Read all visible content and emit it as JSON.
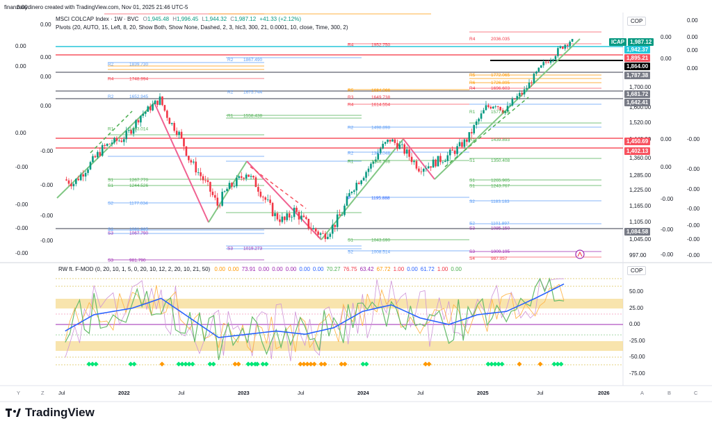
{
  "page": {
    "attribution": "finanzasydinero created with TradingView.com, Nov 01, 2025 21:46 UTC-5",
    "brand": "TradingView"
  },
  "price_pane": {
    "symbol_line": "MSCI COLCAP Index · 1W · BVC",
    "ohlc": {
      "O": "1,945.48",
      "H": "1,996.45",
      "L": "1,944.32",
      "C": "1,987.12",
      "change": "+41.33 (+2.12%)"
    },
    "indicator_line": "Pivots (20, AUTO, 15, Left, 8, 20, Show Both, Show None, Dashed, 2, 3, hlc3, 300, 21, 0.0001, 10, close, Time, 300, 2)",
    "currency_button": "COP",
    "y_axis_ticks": [
      {
        "value": 1700,
        "label": "1,700.00"
      },
      {
        "value": 1600,
        "label": "1,600.00"
      },
      {
        "value": 1520,
        "label": "1,520.00"
      },
      {
        "value": 1440,
        "label": "1,440.00"
      },
      {
        "value": 1360,
        "label": "1,360.00"
      },
      {
        "value": 1285,
        "label": "1,285.00"
      },
      {
        "value": 1225,
        "label": "1,225.00"
      },
      {
        "value": 1165,
        "label": "1,165.00"
      },
      {
        "value": 1105,
        "label": "1,105.00"
      },
      {
        "value": 1045,
        "label": "1,045.00"
      },
      {
        "value": 997,
        "label": "997.00"
      }
    ],
    "price_pills": [
      {
        "label": "ICAP",
        "value": "1,987.12",
        "color": "#089981"
      },
      {
        "value": "1,942.37",
        "color": "#26c6da"
      },
      {
        "value": "1,895.21",
        "color": "#f7525f"
      },
      {
        "value": "1,864.00",
        "color": "#000000"
      },
      {
        "value": "1,787.38",
        "color": "#787b86"
      },
      {
        "value": "1,681.72",
        "color": "#787b86"
      },
      {
        "value": "1,642.41",
        "color": "#787b86"
      },
      {
        "value": "1,450.69",
        "color": "#f7525f"
      },
      {
        "value": "1,402.13",
        "color": "#f7525f"
      },
      {
        "value": "1,084.58",
        "color": "#787b86"
      }
    ],
    "left_zero_labels": [
      "0.00",
      "0.00",
      "0.00",
      "0.00",
      "0.00",
      "0.00",
      "0.00",
      "0.00",
      "-0.00",
      "-0.00",
      "-0.00",
      "-0.00",
      "-0.00",
      "-0.00",
      "-0.00",
      "-0.00"
    ],
    "right_zero_labels_a": [
      "0.00",
      "0.00",
      "0.00",
      "0.00",
      "-0.00",
      "-0.00",
      "-0.00",
      "-0.00",
      "-0.00",
      "-0.00",
      "-0.00"
    ],
    "right_zero_labels_b": [
      "0.00",
      "0.00",
      "0.00",
      "0.00",
      "-0.00",
      "-0.00",
      "-0.00",
      "-0.00",
      "-0.00",
      "-0.00",
      "-0.00",
      "-0.00"
    ],
    "pivot_labels": [
      {
        "tag": "R4",
        "value": "2036.035"
      },
      {
        "tag": "R4",
        "value": "1952.750"
      },
      {
        "tag": "R2",
        "value": "1867.490"
      },
      {
        "tag": "R2",
        "value": "1839.730"
      },
      {
        "tag": "R4",
        "value": "1748.994"
      },
      {
        "tag": "R5",
        "value": "1772.065"
      },
      {
        "tag": "R6",
        "value": "1726.895"
      },
      {
        "tag": "R4",
        "value": "1696.603"
      },
      {
        "tag": "R5",
        "value": "1684.066"
      },
      {
        "tag": "R2",
        "value": "1652.945"
      },
      {
        "tag": "R2",
        "value": "1675.744"
      },
      {
        "tag": "R3",
        "value": "1649.738"
      },
      {
        "tag": "R4",
        "value": "1614.554"
      },
      {
        "tag": "R1",
        "value": "1558.438"
      },
      {
        "tag": "R1",
        "value": "1577.414"
      },
      {
        "tag": "R2",
        "value": "1498.898"
      },
      {
        "tag": "R1",
        "value": "1493.014"
      },
      {
        "tag": "R1",
        "value": "1439.893"
      },
      {
        "tag": "R2",
        "value": "1381.048"
      },
      {
        "tag": "R1",
        "value": "1346.798"
      },
      {
        "tag": "S1",
        "value": "1350.408"
      },
      {
        "tag": "S1",
        "value": "1267.770"
      },
      {
        "tag": "S1",
        "value": "1244.526"
      },
      {
        "tag": "S1",
        "value": "1265.905"
      },
      {
        "tag": "S1",
        "value": "1243.767"
      },
      {
        "tag": "P",
        "value": "1195.888"
      },
      {
        "tag": "S2",
        "value": "1183.183"
      },
      {
        "tag": "S2",
        "value": "1177.034"
      },
      {
        "tag": "S2",
        "value": "1101.897"
      },
      {
        "tag": "S3",
        "value": "1085.150"
      },
      {
        "tag": "S2",
        "value": "1081.985"
      },
      {
        "tag": "S3",
        "value": "1067.790"
      },
      {
        "tag": "S1",
        "value": "1043.690"
      },
      {
        "tag": "S3",
        "value": "1019.273"
      },
      {
        "tag": "S2",
        "value": "1008.514"
      },
      {
        "tag": "S3",
        "value": "1009.195"
      },
      {
        "tag": "S4",
        "value": "987.057"
      },
      {
        "tag": "S3",
        "value": "981.790"
      }
    ]
  },
  "oscillator_pane": {
    "title": "RW ft. F-MOD (0, 20, 10, 1, 5, 0, 20, 10, 12, 2, 20, 10, 21, 50)",
    "values": [
      {
        "text": "0.00",
        "color": "#ff9800"
      },
      {
        "text": "0.00",
        "color": "#ff9800"
      },
      {
        "text": "73.91",
        "color": "#9c27b0"
      },
      {
        "text": "0.00",
        "color": "#9c27b0"
      },
      {
        "text": "0.00",
        "color": "#9c27b0"
      },
      {
        "text": "0.00",
        "color": "#9c27b0"
      },
      {
        "text": "0.00",
        "color": "#2962ff"
      },
      {
        "text": "0.00",
        "color": "#2962ff"
      },
      {
        "text": "70.27",
        "color": "#4caf50"
      },
      {
        "text": "76.75",
        "color": "#f23645"
      },
      {
        "text": "63.42",
        "color": "#9c27b0"
      },
      {
        "text": "67.72",
        "color": "#ff9800"
      },
      {
        "text": "1.00",
        "color": "#f23645"
      },
      {
        "text": "0.00",
        "color": "#2962ff"
      },
      {
        "text": "61.72",
        "color": "#2962ff"
      },
      {
        "text": "1.00",
        "color": "#f23645"
      },
      {
        "text": "0.00",
        "color": "#4caf50"
      }
    ],
    "currency_button": "COP",
    "y_axis_ticks": [
      {
        "value": 50,
        "label": "50.00"
      },
      {
        "value": 25,
        "label": "25.00"
      },
      {
        "value": 0,
        "label": "0.00"
      },
      {
        "value": -25,
        "label": "-25.00"
      },
      {
        "value": -50,
        "label": "-50.00"
      },
      {
        "value": -75,
        "label": "-75.00"
      }
    ]
  },
  "time_axis": {
    "labels": [
      "Jul",
      "2022",
      "Jul",
      "2023",
      "Jul",
      "2024",
      "Jul",
      "2025",
      "Jul",
      "2026"
    ],
    "corner_left": [
      "Y",
      "Z"
    ],
    "corner_right": [
      "A",
      "B",
      "C"
    ]
  },
  "chart_data": {
    "type": "candlestick",
    "title": "MSCI COLCAP Index · 1W · BVC",
    "x_range": [
      "2021-05",
      "2026-03"
    ],
    "ylim": [
      990,
      2000
    ],
    "closes_path": [
      [
        "2021-06",
        1270
      ],
      [
        "2021-07",
        1255
      ],
      [
        "2021-08",
        1300
      ],
      [
        "2021-09",
        1350
      ],
      [
        "2021-10",
        1400
      ],
      [
        "2021-11",
        1430
      ],
      [
        "2021-12",
        1440
      ],
      [
        "2022-01",
        1490
      ],
      [
        "2022-02",
        1560
      ],
      [
        "2022-03",
        1600
      ],
      [
        "2022-04",
        1640
      ],
      [
        "2022-05",
        1530
      ],
      [
        "2022-06",
        1470
      ],
      [
        "2022-07",
        1360
      ],
      [
        "2022-08",
        1300
      ],
      [
        "2022-09",
        1240
      ],
      [
        "2022-10",
        1170
      ],
      [
        "2022-11",
        1230
      ],
      [
        "2022-12",
        1260
      ],
      [
        "2023-01",
        1300
      ],
      [
        "2023-02",
        1250
      ],
      [
        "2023-03",
        1190
      ],
      [
        "2023-04",
        1130
      ],
      [
        "2023-05",
        1110
      ],
      [
        "2023-06",
        1150
      ],
      [
        "2023-07",
        1110
      ],
      [
        "2023-08",
        1080
      ],
      [
        "2023-09",
        1060
      ],
      [
        "2023-10",
        1090
      ],
      [
        "2023-11",
        1140
      ],
      [
        "2023-12",
        1230
      ],
      [
        "2024-01",
        1280
      ],
      [
        "2024-02",
        1330
      ],
      [
        "2024-03",
        1400
      ],
      [
        "2024-04",
        1440
      ],
      [
        "2024-05",
        1410
      ],
      [
        "2024-06",
        1370
      ],
      [
        "2024-07",
        1320
      ],
      [
        "2024-08",
        1330
      ],
      [
        "2024-09",
        1350
      ],
      [
        "2024-10",
        1370
      ],
      [
        "2024-11",
        1400
      ],
      [
        "2024-12",
        1440
      ],
      [
        "2025-01",
        1520
      ],
      [
        "2025-02",
        1600
      ],
      [
        "2025-03",
        1620
      ],
      [
        "2025-04",
        1580
      ],
      [
        "2025-05",
        1640
      ],
      [
        "2025-06",
        1680
      ],
      [
        "2025-07",
        1760
      ],
      [
        "2025-08",
        1840
      ],
      [
        "2025-09",
        1890
      ],
      [
        "2025-10",
        1945
      ],
      [
        "2025-11",
        1987
      ]
    ],
    "last": {
      "open": 1945.48,
      "high": 1996.45,
      "low": 1944.32,
      "close": 1987.12
    },
    "oscillator": {
      "name": "RW ft. F-MOD",
      "ylim": [
        -80,
        75
      ],
      "bands": [
        [
          25,
          40
        ],
        [
          -40,
          -25
        ]
      ],
      "slow_line": [
        [
          "2021-06",
          -10
        ],
        [
          "2021-09",
          15
        ],
        [
          "2022-01",
          25
        ],
        [
          "2022-04",
          40
        ],
        [
          "2022-07",
          10
        ],
        [
          "2022-10",
          -20
        ],
        [
          "2023-01",
          -15
        ],
        [
          "2023-04",
          -10
        ],
        [
          "2023-07",
          -15
        ],
        [
          "2023-10",
          -5
        ],
        [
          "2024-01",
          20
        ],
        [
          "2024-04",
          30
        ],
        [
          "2024-07",
          10
        ],
        [
          "2024-10",
          0
        ],
        [
          "2025-01",
          15
        ],
        [
          "2025-04",
          20
        ],
        [
          "2025-07",
          40
        ],
        [
          "2025-10",
          62
        ]
      ]
    }
  }
}
